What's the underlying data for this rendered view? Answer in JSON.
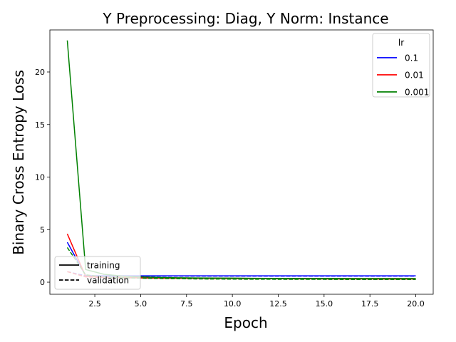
{
  "chart_data": {
    "type": "line",
    "title": "Y Preprocessing: Diag, Y Norm: Instance",
    "xlabel": "Epoch",
    "ylabel": "Binary Cross Entropy Loss",
    "xlim": [
      0.05,
      20.95
    ],
    "ylim": [
      -1.15,
      24.0
    ],
    "xticks": [
      2.5,
      5.0,
      7.5,
      10.0,
      12.5,
      15.0,
      17.5,
      20.0
    ],
    "xtick_labels": [
      "2.5",
      "5.0",
      "7.5",
      "10.0",
      "12.5",
      "15.0",
      "17.5",
      "20.0"
    ],
    "yticks": [
      0,
      5,
      10,
      15,
      20
    ],
    "ytick_labels": [
      "0",
      "5",
      "10",
      "15",
      "20"
    ],
    "grid": false,
    "x": [
      1,
      2,
      3,
      4,
      5,
      6,
      7,
      8,
      9,
      10,
      11,
      12,
      13,
      14,
      15,
      16,
      17,
      18,
      19,
      20
    ],
    "series": [
      {
        "lr": "0.1",
        "split": "training",
        "color": "#0000ff",
        "dash": "solid",
        "values": [
          3.8,
          0.62,
          0.6,
          0.6,
          0.6,
          0.6,
          0.6,
          0.6,
          0.6,
          0.6,
          0.6,
          0.6,
          0.6,
          0.6,
          0.6,
          0.6,
          0.6,
          0.6,
          0.6,
          0.6
        ]
      },
      {
        "lr": "0.1",
        "split": "validation",
        "color": "#0000ff",
        "dash": "dashed",
        "values": [
          1.0,
          0.6,
          0.58,
          0.58,
          0.58,
          0.58,
          0.58,
          0.58,
          0.58,
          0.58,
          0.58,
          0.58,
          0.58,
          0.58,
          0.58,
          0.58,
          0.58,
          0.58,
          0.58,
          0.58
        ]
      },
      {
        "lr": "0.01",
        "split": "training",
        "color": "#ff0000",
        "dash": "solid",
        "values": [
          4.6,
          0.55,
          0.48,
          0.44,
          0.42,
          0.4,
          0.39,
          0.38,
          0.37,
          0.37,
          0.36,
          0.36,
          0.35,
          0.35,
          0.35,
          0.34,
          0.34,
          0.34,
          0.34,
          0.34
        ]
      },
      {
        "lr": "0.01",
        "split": "validation",
        "color": "#ff0000",
        "dash": "dashed",
        "values": [
          1.0,
          0.5,
          0.45,
          0.42,
          0.4,
          0.38,
          0.37,
          0.36,
          0.35,
          0.34,
          0.33,
          0.33,
          0.32,
          0.32,
          0.31,
          0.31,
          0.31,
          0.3,
          0.3,
          0.3
        ]
      },
      {
        "lr": "0.001",
        "split": "training",
        "color": "#008000",
        "dash": "solid",
        "values": [
          23.0,
          1.2,
          0.75,
          0.58,
          0.5,
          0.45,
          0.42,
          0.4,
          0.39,
          0.38,
          0.37,
          0.36,
          0.36,
          0.35,
          0.35,
          0.35,
          0.34,
          0.34,
          0.34,
          0.34
        ]
      },
      {
        "lr": "0.001",
        "split": "validation",
        "color": "#008000",
        "dash": "dashed",
        "values": [
          3.3,
          0.7,
          0.5,
          0.42,
          0.38,
          0.35,
          0.33,
          0.31,
          0.3,
          0.29,
          0.28,
          0.28,
          0.27,
          0.27,
          0.27,
          0.26,
          0.26,
          0.26,
          0.26,
          0.26
        ]
      }
    ],
    "legend_lr": {
      "title": "lr",
      "placement": "upper right",
      "entries": [
        {
          "label": "0.1",
          "color": "#0000ff"
        },
        {
          "label": "0.01",
          "color": "#ff0000"
        },
        {
          "label": "0.001",
          "color": "#008000"
        }
      ]
    },
    "legend_split": {
      "placement": "lower left",
      "entries": [
        {
          "label": "training",
          "dash": "solid"
        },
        {
          "label": "validation",
          "dash": "dashed"
        }
      ]
    }
  }
}
